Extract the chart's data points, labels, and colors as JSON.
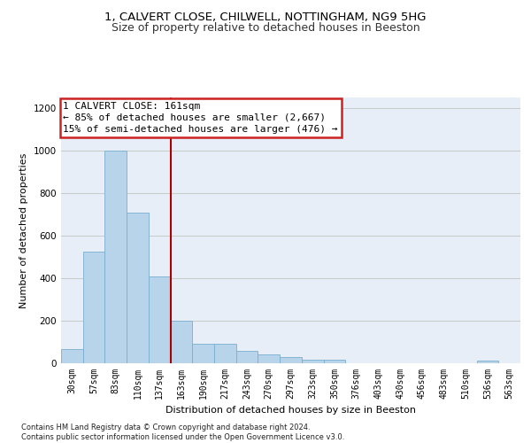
{
  "title_line1": "1, CALVERT CLOSE, CHILWELL, NOTTINGHAM, NG9 5HG",
  "title_line2": "Size of property relative to detached houses in Beeston",
  "xlabel": "Distribution of detached houses by size in Beeston",
  "ylabel": "Number of detached properties",
  "footnote": "Contains HM Land Registry data © Crown copyright and database right 2024.\nContains public sector information licensed under the Open Government Licence v3.0.",
  "bar_labels": [
    "30sqm",
    "57sqm",
    "83sqm",
    "110sqm",
    "137sqm",
    "163sqm",
    "190sqm",
    "217sqm",
    "243sqm",
    "270sqm",
    "297sqm",
    "323sqm",
    "350sqm",
    "376sqm",
    "403sqm",
    "430sqm",
    "456sqm",
    "483sqm",
    "510sqm",
    "536sqm",
    "563sqm"
  ],
  "bar_values": [
    65,
    525,
    1000,
    710,
    410,
    198,
    90,
    90,
    57,
    40,
    30,
    18,
    18,
    0,
    0,
    0,
    0,
    0,
    0,
    12,
    0
  ],
  "bar_color": "#b8d4ea",
  "bar_edge_color": "#7aaecf",
  "vline_color": "#aa0000",
  "annotation_text": "1 CALVERT CLOSE: 161sqm\n← 85% of detached houses are smaller (2,667)\n15% of semi-detached houses are larger (476) →",
  "annotation_box_color": "#ffffff",
  "annotation_border_color": "#cc2222",
  "ylim": [
    0,
    1250
  ],
  "yticks": [
    0,
    200,
    400,
    600,
    800,
    1000,
    1200
  ],
  "background_color": "#e8eef8",
  "grid_color": "#c8c8c8",
  "title_fontsize": 9.5,
  "subtitle_fontsize": 9,
  "axis_label_fontsize": 8,
  "tick_fontsize": 7,
  "annotation_fontsize": 8,
  "ylabel_fontsize": 8
}
